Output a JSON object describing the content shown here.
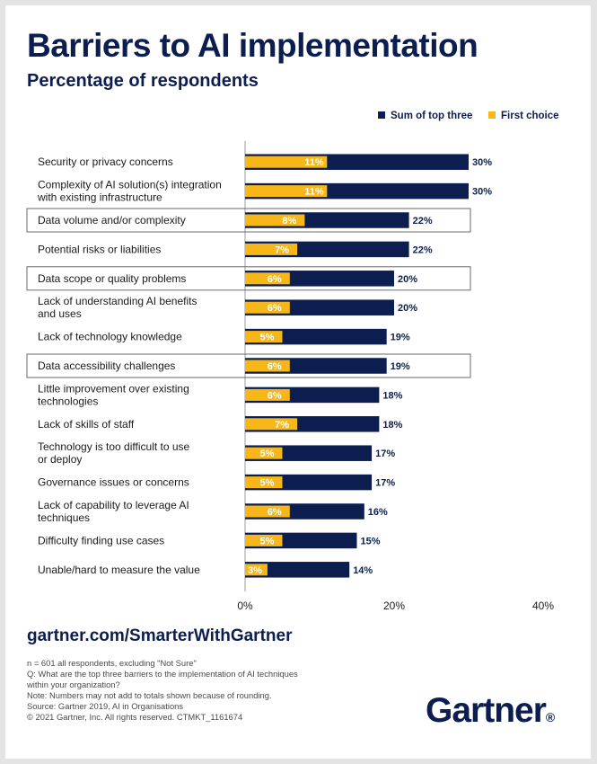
{
  "title": "Barriers to AI implementation",
  "subtitle": "Percentage of respondents",
  "colors": {
    "navy": "#0c1e4f",
    "yellow": "#f7b719",
    "white": "#ffffff"
  },
  "chart_data": {
    "type": "bar",
    "orientation": "horizontal",
    "stacked": false,
    "overlay": true,
    "xlim": [
      0,
      40
    ],
    "x_ticks": [
      0,
      20,
      40
    ],
    "x_tick_labels": [
      "0%",
      "20%",
      "40%"
    ],
    "legend_position": "top-right",
    "categories": [
      "Security or privacy concerns",
      "Complexity of AI solution(s) integration\nwith existing infrastructure",
      "Data volume and/or complexity",
      "Potential risks or liabilities",
      "Data scope or quality problems",
      "Lack of understanding AI benefits\nand uses",
      "Lack of technology knowledge",
      "Data accessibility challenges",
      "Little improvement over existing\ntechnologies",
      "Lack of skills of staff",
      "Technology is too difficult to use\nor deploy",
      "Governance issues or concerns",
      "Lack of capability to leverage AI\ntechniques",
      "Difficulty finding use cases",
      "Unable/hard to measure the value"
    ],
    "highlighted": [
      false,
      false,
      true,
      false,
      true,
      false,
      false,
      true,
      false,
      false,
      false,
      false,
      false,
      false,
      false
    ],
    "series": [
      {
        "name": "Sum of top three",
        "color": "#0c1e4f",
        "values": [
          30,
          30,
          22,
          22,
          20,
          20,
          19,
          19,
          18,
          18,
          17,
          17,
          16,
          15,
          14
        ],
        "labels": [
          "30%",
          "30%",
          "22%",
          "22%",
          "20%",
          "20%",
          "19%",
          "19%",
          "18%",
          "18%",
          "17%",
          "17%",
          "16%",
          "15%",
          "14%"
        ]
      },
      {
        "name": "First choice",
        "color": "#f7b719",
        "values": [
          11,
          11,
          8,
          7,
          6,
          6,
          5,
          6,
          6,
          7,
          5,
          5,
          6,
          5,
          3
        ],
        "labels": [
          "11%",
          "11%",
          "8%",
          "7%",
          "6%",
          "6%",
          "5%",
          "6%",
          "6%",
          "7%",
          "5%",
          "5%",
          "6%",
          "5%",
          "3%"
        ]
      }
    ]
  },
  "footer": {
    "url": "gartner.com/SmarterWithGartner",
    "notes": [
      "n = 601 all respondents, excluding \"Not Sure\"",
      "Q: What are the top three barriers to the implementation of AI techniques",
      "within your organization?",
      "Note: Numbers may not add to totals shown because of rounding.",
      "Source: Gartner 2019, AI in Organisations",
      "© 2021 Gartner, Inc. All rights reserved. CTMKT_1161674"
    ],
    "logo_text": "Gartner",
    "logo_mark": "®"
  }
}
